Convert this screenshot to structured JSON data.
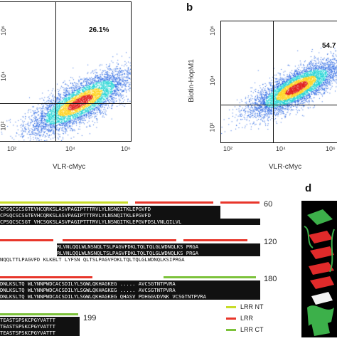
{
  "panels": {
    "a": {
      "percent_label": "26.1%",
      "xlabel": "VLR-cMyc",
      "x_ticks": [
        "10²",
        "10⁴",
        "10⁶"
      ],
      "y_ticks": [
        "10⁶",
        "10⁴",
        "10²"
      ]
    },
    "b": {
      "letter": "b",
      "percent_label": "54.7",
      "xlabel": "VLR-cMyc",
      "ylabel": "Biotin-HopM1",
      "x_ticks": [
        "10²",
        "10⁴",
        "10⁶"
      ],
      "y_ticks": [
        "10⁶",
        "10⁴",
        "10²"
      ]
    },
    "d": {
      "letter": "d"
    }
  },
  "alignment": {
    "positions": [
      "60",
      "120",
      "180",
      "199"
    ],
    "rows": [
      {
        "text": "CPSQCSCSGTEVHCQRKSLASVPAGIPTTTRVLYLNSNQITKLEPGVFD",
        "style": "dark"
      },
      {
        "text": "CPSQCSCSGTEVHCQRKSLASVPAGIPTTTRVLYLNSNQITKLEPGVFD",
        "style": "dark"
      },
      {
        "text": "CPSQCSCSGT VHCSGKSLASVPAGIPTTTRVLYLNSNQITKLEPGVFDSLVNLQILVL",
        "style": "dark"
      },
      {
        "text": "RLVNLQQLWLNSNQLTSLPAGVFDKLTQLTQLGLWDNQLKS PRGA",
        "style": "dark"
      },
      {
        "text": "RLVNLQQLWLNSNQLTSLPAGVFDKLTQLTQLGLWDNQLKS PRGA",
        "style": "dark"
      },
      {
        "text": "NQQLTTLPAGVFD KLKELT LYFSN QLTSLPAGVFDKLTQLTQLGLWDNQLKSIPRGA",
        "style": "light"
      },
      {
        "text": "DNLKSLTQ WLYNNPWDCACSDILYLSGWLQKHAGKEG ..... AVCSGTNTPVRA",
        "style": "dark"
      },
      {
        "text": "DNLKSLTQ WLYNNPWDCACSDILYLSGWLQKHAGKEG ..... AVCSGTNTPVRA",
        "style": "dark"
      },
      {
        "text": "DNLKSLTQ WLYNNPWDCACSDILYLSGWLQKHAGKEG QHASV PDHGGVDVNK VCSGTNTPVRA",
        "style": "dark"
      },
      {
        "text": "TEASTSPSKCPGYVATTT",
        "style": "dark"
      },
      {
        "text": "TEASTSPSKCPGYVATTT",
        "style": "dark"
      },
      {
        "text": "TEASTSPSKCPGYVATTT",
        "style": "dark"
      }
    ],
    "legend": [
      {
        "label": "LRR NT",
        "color": "#c8dc28"
      },
      {
        "label": "LRR",
        "color": "#e8362a"
      },
      {
        "label": "LRR CT",
        "color": "#7cc23a"
      }
    ]
  },
  "colors": {
    "density_low": "#1f5fe0",
    "density_mid": "#1fd3d3",
    "density_high": "#ffd21f",
    "density_peak": "#e0201f"
  }
}
